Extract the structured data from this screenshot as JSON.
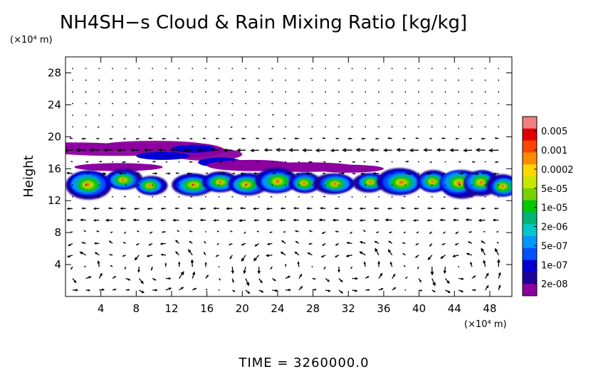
{
  "chart_data": {
    "type": "heatmap",
    "title": "NH4SH−s Cloud & Rain Mixing Ratio [kg/kg]",
    "ylabel": "Height",
    "y_unit": "(×10⁴ m)",
    "x_unit": "(×10⁴ m)",
    "xlim": [
      0,
      50.5
    ],
    "ylim": [
      0,
      30
    ],
    "x_ticks": [
      4,
      8,
      12,
      16,
      20,
      24,
      28,
      32,
      36,
      40,
      44,
      48
    ],
    "y_ticks": [
      4,
      8,
      12,
      16,
      20,
      24,
      28
    ],
    "time_label": "TIME  =  3260000.0",
    "colorbar": {
      "labels": [
        "0.005",
        "0.001",
        "0.0002",
        "5e-05",
        "1e-05",
        "2e-06",
        "5e-07",
        "1e-07",
        "2e-08"
      ],
      "colors": [
        "#f08080",
        "#e00000",
        "#ff4500",
        "#ff8c00",
        "#ffd700",
        "#c8e600",
        "#78d200",
        "#00c800",
        "#00b478",
        "#00c8c8",
        "#0096ff",
        "#0050ff",
        "#0000d2",
        "#1e0096",
        "#8c00a0"
      ]
    },
    "cloud_bands": [
      {
        "level": "anvil",
        "x": [
          0.5,
          19
        ],
        "y": [
          17.6,
          19.2
        ]
      },
      {
        "level": "anvil",
        "x": [
          18,
          35
        ],
        "y": [
          15.8,
          17.3
        ]
      },
      {
        "level": "main",
        "x": [
          0,
          50.5
        ],
        "y": [
          12.4,
          15.6
        ]
      }
    ]
  }
}
